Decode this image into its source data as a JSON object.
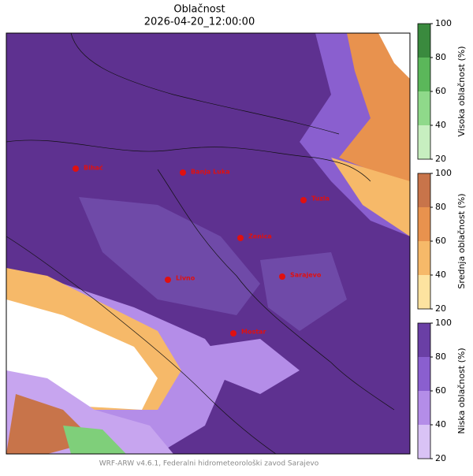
{
  "header": {
    "title": "Oblačnost",
    "subtitle": "2026-04-20_12:00:00"
  },
  "cities": [
    {
      "name": "Bihać"
    },
    {
      "name": "Banja Luka"
    },
    {
      "name": "Tuzla"
    },
    {
      "name": "Zenica"
    },
    {
      "name": "Livno"
    },
    {
      "name": "Sarajevo"
    },
    {
      "name": "Mostar"
    }
  ],
  "colorbars": [
    {
      "label": "Visoka oblačnost (%)",
      "ticks": [
        20,
        40,
        60,
        80,
        100
      ],
      "colors": [
        "#c7efc0",
        "#8fd98a",
        "#5bb75a",
        "#3a8a3e"
      ]
    },
    {
      "label": "Srednja oblačnost (%)",
      "ticks": [
        20,
        40,
        60,
        80,
        100
      ],
      "colors": [
        "#fde3a0",
        "#f6b969",
        "#e8924e",
        "#c8744a"
      ]
    },
    {
      "label": "Niska oblačnost (%)",
      "ticks": [
        20,
        40,
        60,
        80,
        100
      ],
      "colors": [
        "#d9c3f5",
        "#b48de8",
        "#8a5fcf",
        "#6a3fa5"
      ]
    }
  ],
  "footer": "WRF-ARW v4.6.1, Federalni hidrometeorološki zavod Sarajevo"
}
